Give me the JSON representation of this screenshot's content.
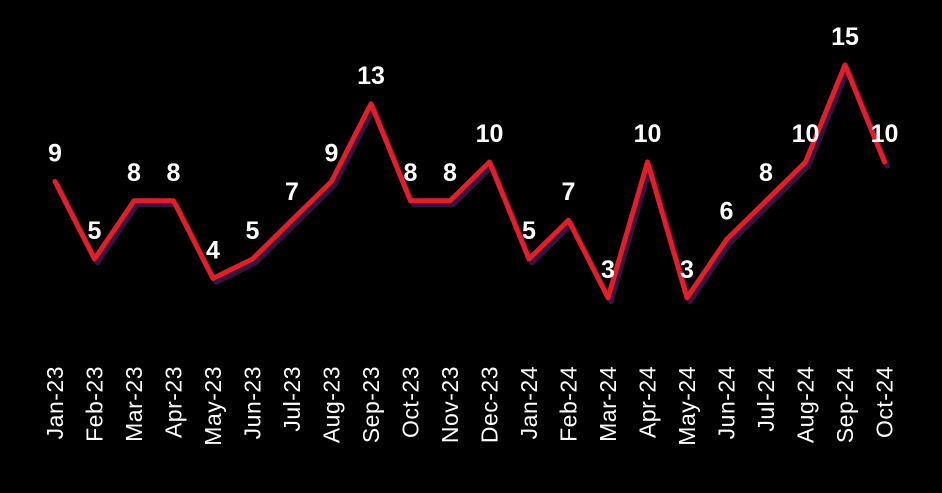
{
  "page": {
    "background_color": "#000000",
    "text_color": "#ffffff"
  },
  "chart_data": {
    "type": "line",
    "categories": [
      "Jan-23",
      "Feb-23",
      "Mar-23",
      "Apr-23",
      "May-23",
      "Jun-23",
      "Jul-23",
      "Aug-23",
      "Sep-23",
      "Oct-23",
      "Nov-23",
      "Dec-23",
      "Jan-24",
      "Feb-24",
      "Mar-24",
      "Apr-24",
      "May-24",
      "Jun-24",
      "Jul-24",
      "Aug-24",
      "Sep-24",
      "Oct-24"
    ],
    "values": [
      9,
      5,
      8,
      8,
      4,
      5,
      7,
      9,
      13,
      8,
      8,
      10,
      5,
      7,
      3,
      10,
      3,
      6,
      8,
      10,
      15,
      10
    ],
    "data_labels_visible": true,
    "line_color": "#e01f28",
    "line_shadow_color": "#3a1240",
    "data_label_color": "#ffffff",
    "axis_label_color": "#ffffff",
    "x_tick_rotation_degrees": 90,
    "ylim": [
      0,
      16
    ],
    "grid": false,
    "legend": false,
    "y_axis_visible": false,
    "x_axis_line_visible": false
  }
}
